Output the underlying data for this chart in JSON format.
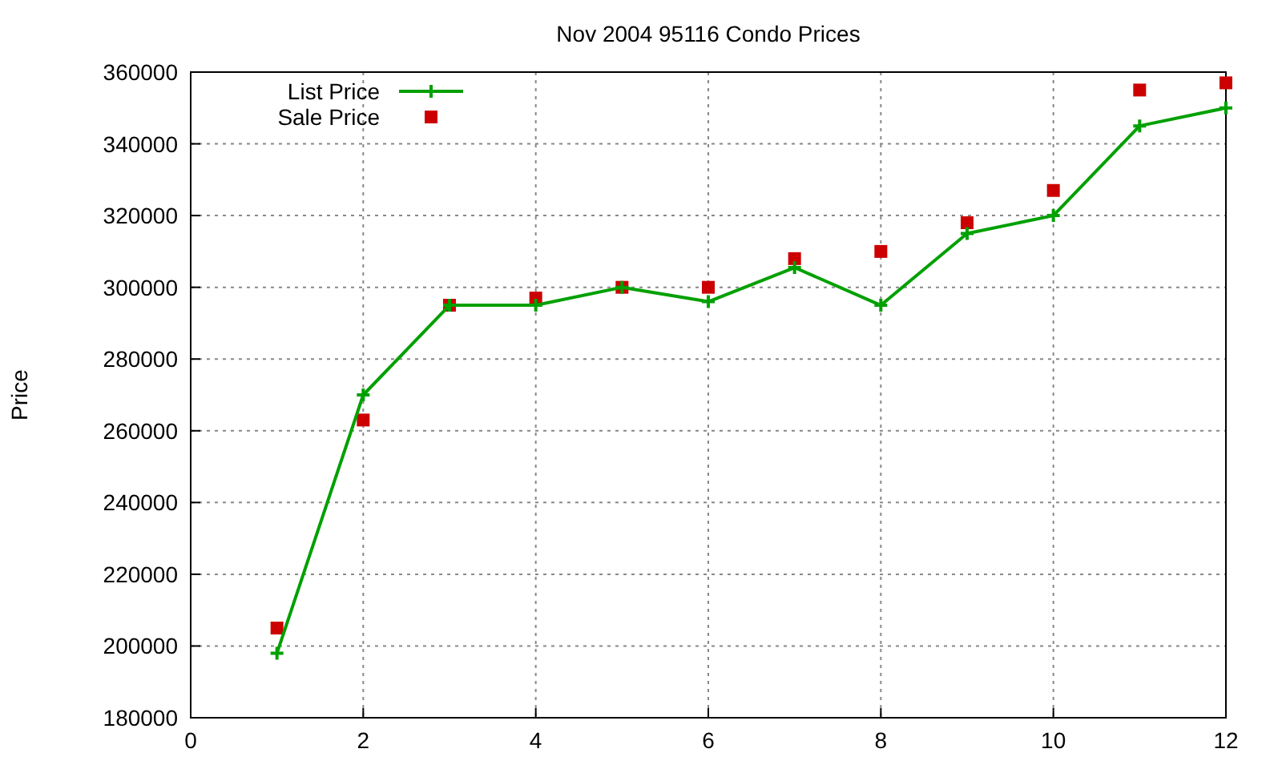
{
  "chart_data": {
    "type": "line",
    "title": "Nov 2004 95116 Condo Prices",
    "ylabel": "Price",
    "x": [
      1,
      2,
      3,
      4,
      5,
      6,
      7,
      8,
      9,
      10,
      11,
      12
    ],
    "series": [
      {
        "name": "List Price",
        "color": "#00a000",
        "marker": "cross",
        "values": [
          198000,
          270000,
          295000,
          295000,
          300000,
          296000,
          305500,
          295000,
          315000,
          320000,
          345000,
          350000
        ]
      },
      {
        "name": "Sale Price",
        "type": "scatter",
        "color": "#cc0000",
        "marker": "square",
        "values": [
          205000,
          263000,
          295000,
          297000,
          300000,
          300000,
          308000,
          310000,
          318000,
          327000,
          355000,
          357000
        ]
      }
    ],
    "xlim": [
      0,
      12
    ],
    "xticks": [
      0,
      2,
      4,
      6,
      8,
      10,
      12
    ],
    "ylim": [
      180000,
      360000
    ],
    "yticks": [
      180000,
      200000,
      220000,
      240000,
      260000,
      280000,
      300000,
      320000,
      340000,
      360000
    ],
    "grid": true,
    "legend": "top left"
  }
}
